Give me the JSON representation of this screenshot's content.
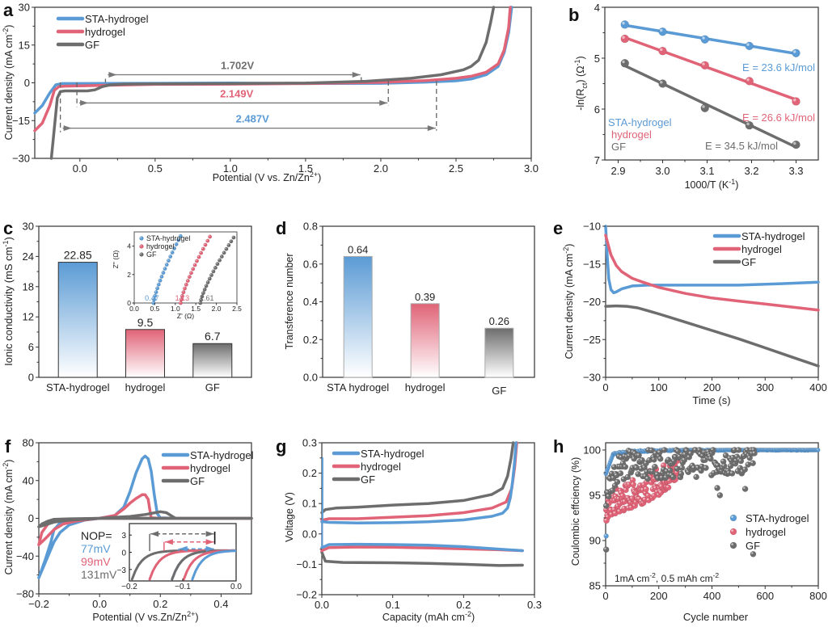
{
  "colors": {
    "sta": "#5b9bd5",
    "hydrogel": "#e06377",
    "gf": "#6d6d6d",
    "axis": "#333333"
  },
  "series_names": [
    "STA-hydrogel",
    "hydrogel",
    "GF"
  ],
  "chart_data": [
    {
      "panel": "a",
      "type": "line",
      "xlabel": "Potential (V vs. Zn/Zn²⁺)",
      "ylabel": "Current density (mA cm⁻²)",
      "xlim": [
        -0.3,
        3.0
      ],
      "ylim": [
        -30,
        30
      ],
      "xticks": [
        0.0,
        0.5,
        1.0,
        1.5,
        2.0,
        2.5,
        3.0
      ],
      "yticks": [
        -30,
        -15,
        0,
        15,
        30
      ],
      "legend": "top-left",
      "series": [
        {
          "name": "STA-hydrogel",
          "x": [
            -0.3,
            -0.25,
            -0.2,
            -0.16,
            -0.12,
            0.0,
            0.5,
            1.0,
            1.5,
            2.0,
            2.3,
            2.5,
            2.6,
            2.7,
            2.78,
            2.82,
            2.85,
            2.87
          ],
          "y": [
            -12,
            -9,
            -4,
            -0.8,
            -0.3,
            -0.3,
            -0.2,
            -0.1,
            -0.3,
            -0.2,
            0.3,
            0.8,
            1.5,
            3.2,
            6.5,
            12,
            20,
            30
          ]
        },
        {
          "name": "hydrogel",
          "x": [
            -0.3,
            -0.25,
            -0.2,
            -0.17,
            -0.14,
            -0.1,
            0.0,
            0.5,
            1.0,
            1.5,
            2.0,
            2.3,
            2.5,
            2.6,
            2.7,
            2.78,
            2.82,
            2.85,
            2.86
          ],
          "y": [
            -19,
            -16,
            -9,
            -3,
            -1.5,
            -1.3,
            -1.2,
            -0.6,
            -0.5,
            -0.3,
            0.2,
            0.9,
            1.8,
            2.6,
            4.2,
            7.5,
            13,
            22,
            30
          ]
        },
        {
          "name": "GF",
          "x": [
            -0.19,
            -0.17,
            -0.15,
            -0.13,
            -0.1,
            -0.05,
            0.05,
            0.1,
            0.15,
            0.2,
            0.3,
            0.5,
            1.0,
            1.5,
            1.9,
            2.2,
            2.4,
            2.55,
            2.6,
            2.65,
            2.7,
            2.73,
            2.75
          ],
          "y": [
            -30,
            -18,
            -6,
            -3.5,
            -3.2,
            -3.2,
            -3.2,
            -2.8,
            -1.5,
            -0.8,
            -0.5,
            -0.4,
            -0.3,
            -0.1,
            0.6,
            1.8,
            3.2,
            5.2,
            6.5,
            9,
            16,
            24,
            30
          ]
        }
      ],
      "annotations": [
        {
          "text": "1.702V",
          "color": "gf",
          "from": 0.17,
          "to": 1.87,
          "y": 3.2
        },
        {
          "text": "2.149V",
          "color": "hydrogel",
          "from": -0.02,
          "to": 2.05,
          "y": -8
        },
        {
          "text": "2.487V",
          "color": "sta",
          "from": -0.13,
          "to": 2.37,
          "y": -18
        }
      ]
    },
    {
      "panel": "b",
      "type": "scatter",
      "xlabel": "1000/T (K⁻¹)",
      "ylabel": "-ln(Rₑₜ) (Ω⁻¹)",
      "ylabel_main": "-ln(R",
      "ylabel_sub": "ct",
      "ylabel_tail": ") (Ω",
      "ylabel_sup": "-1",
      "ylabel_end": ")",
      "xlim": [
        2.87,
        3.35
      ],
      "ylim": [
        7,
        4
      ],
      "y_inverted": true,
      "xticks": [
        2.9,
        3.0,
        3.1,
        3.2,
        3.3
      ],
      "yticks": [
        4,
        5,
        6,
        7
      ],
      "legend": "bottom-left",
      "series": [
        {
          "name": "STA-hydrogel",
          "x": [
            2.915,
            3.0,
            3.095,
            3.195,
            3.3
          ],
          "y": [
            4.34,
            4.48,
            4.63,
            4.76,
            4.9
          ],
          "label": "E = 23.6 kJ/mol"
        },
        {
          "name": "hydrogel",
          "x": [
            2.915,
            3.0,
            3.095,
            3.195,
            3.3
          ],
          "y": [
            4.62,
            4.86,
            5.14,
            5.45,
            5.85
          ],
          "label": "E = 26.6 kJ/mol"
        },
        {
          "name": "GF",
          "x": [
            2.915,
            3.0,
            3.095,
            3.195,
            3.3
          ],
          "y": [
            5.1,
            5.5,
            5.98,
            6.32,
            6.7
          ],
          "label": "E = 34.5 kJ/mol"
        }
      ]
    },
    {
      "panel": "c",
      "type": "bar",
      "ylabel": "Ionic conductivity (mS cm⁻¹)",
      "categories": [
        "STA-hydrogel",
        "hydrogel",
        "GF"
      ],
      "values": [
        22.85,
        9.5,
        6.7
      ],
      "value_labels": [
        "22.85",
        "9.5",
        "6.7"
      ],
      "ylim": [
        0,
        30
      ],
      "yticks": [
        0,
        6,
        12,
        18,
        24,
        30
      ],
      "inset": {
        "type": "scatter",
        "xlabel": "Z' (Ω)",
        "ylabel": "Z'' (Ω)",
        "xlim": [
          0,
          2.5
        ],
        "ylim": [
          0,
          5
        ],
        "xticks": [
          "0.0",
          "0.5",
          "1.0",
          "1.5",
          "2.0",
          "2.5"
        ],
        "yticks": [
          0,
          2,
          4
        ],
        "intercepts": [
          {
            "text": "0.47",
            "x": 0.47
          },
          {
            "text": "1.13",
            "x": 1.13
          },
          {
            "text": "1.61",
            "x": 1.61
          }
        ],
        "series": [
          {
            "name": "STA-hydrogel",
            "x0": 0.47,
            "x1": 1.18,
            "ymax": 5.0
          },
          {
            "name": "hydrogel",
            "x0": 1.13,
            "x1": 1.9,
            "ymax": 4.95
          },
          {
            "name": "GF",
            "x0": 1.61,
            "x1": 2.42,
            "ymax": 4.6
          }
        ]
      }
    },
    {
      "panel": "d",
      "type": "bar",
      "ylabel": "Transference number",
      "categories": [
        "STA hydrogel",
        "hydrogel",
        "GF"
      ],
      "values": [
        0.64,
        0.39,
        0.26
      ],
      "value_labels": [
        "0.64",
        "0.39",
        "0.26"
      ],
      "ylim": [
        0,
        0.8
      ],
      "yticks": [
        "0.0",
        "0.2",
        "0.4",
        "0.6",
        "0.8"
      ]
    },
    {
      "panel": "e",
      "type": "line",
      "xlabel": "Time (s)",
      "ylabel": "Current density (mA cm⁻²)",
      "xlim": [
        0,
        400
      ],
      "ylim": [
        -30,
        -10
      ],
      "xticks": [
        0,
        100,
        200,
        300,
        400
      ],
      "yticks": [
        -30,
        -25,
        -20,
        -15,
        -10
      ],
      "legend": "top-right",
      "series": [
        {
          "name": "STA-hydrogel",
          "x": [
            0,
            3,
            6,
            10,
            15,
            20,
            30,
            50,
            80,
            150,
            250,
            330,
            400
          ],
          "y": [
            -10,
            -14,
            -17,
            -18.4,
            -18.8,
            -18.7,
            -18.3,
            -17.9,
            -17.8,
            -17.8,
            -17.8,
            -17.6,
            -17.4
          ]
        },
        {
          "name": "hydrogel",
          "x": [
            0,
            5,
            10,
            20,
            30,
            50,
            70,
            100,
            150,
            200,
            250,
            300,
            350,
            400
          ],
          "y": [
            -11.2,
            -12.5,
            -13.8,
            -15.2,
            -16,
            -16.9,
            -17.4,
            -18.1,
            -18.9,
            -19.5,
            -19.9,
            -20.3,
            -20.7,
            -21.1
          ]
        },
        {
          "name": "GF",
          "x": [
            0,
            20,
            40,
            60,
            80,
            100,
            150,
            200,
            250,
            300,
            350,
            400
          ],
          "y": [
            -20.6,
            -20.55,
            -20.6,
            -20.8,
            -21.2,
            -21.6,
            -22.7,
            -23.8,
            -24.9,
            -26.1,
            -27.3,
            -28.5
          ]
        }
      ]
    },
    {
      "panel": "f",
      "type": "line",
      "xlabel": "Potential (V vs.Zn/Zn²⁺)",
      "ylabel": "Current density (mA cm⁻²)",
      "xlim": [
        -0.2,
        0.5
      ],
      "ylim": [
        -80,
        80
      ],
      "xticks": [
        "-0.2",
        "0.0",
        "0.2",
        "0.4"
      ],
      "yticks": [
        -80,
        -40,
        0,
        40,
        80
      ],
      "legend": "top-right",
      "nop_label": "NOP=",
      "nop_values": [
        {
          "text": "77mV",
          "color": "sta"
        },
        {
          "text": "99mV",
          "color": "hydrogel"
        },
        {
          "text": "131mV",
          "color": "gf"
        }
      ],
      "series": [
        {
          "name": "STA-hydrogel",
          "x": [
            -0.2,
            -0.17,
            -0.15,
            -0.13,
            -0.1,
            -0.05,
            0.0,
            0.05,
            0.08,
            0.1,
            0.12,
            0.14,
            0.15,
            0.16,
            0.17,
            0.18,
            0.19,
            0.2,
            0.25,
            0.5,
            0.5,
            0.2,
            0.1,
            0.0,
            -0.05,
            -0.1,
            -0.13,
            -0.15,
            -0.16,
            -0.18,
            -0.2
          ],
          "y": [
            -63,
            -40,
            -25,
            -15,
            -7,
            -2,
            0,
            3,
            12,
            28,
            48,
            63,
            66,
            63,
            50,
            25,
            5,
            0.5,
            0,
            0,
            0,
            0,
            0,
            0,
            -0.5,
            -2,
            -5,
            -12,
            -25,
            -45,
            -63
          ]
        },
        {
          "name": "hydrogel",
          "x": [
            -0.2,
            -0.18,
            -0.15,
            -0.12,
            -0.08,
            -0.03,
            0.0,
            0.05,
            0.08,
            0.1,
            0.12,
            0.14,
            0.15,
            0.16,
            0.165,
            0.17,
            0.2,
            0.5,
            0.5,
            0.2,
            0.1,
            0.0,
            -0.1,
            -0.15,
            -0.17,
            -0.19,
            -0.2
          ],
          "y": [
            -28,
            -22,
            -12,
            -6,
            -3,
            -1,
            0,
            3,
            10,
            16,
            21,
            25,
            25,
            20,
            10,
            0.5,
            0,
            0,
            0,
            0,
            0,
            0,
            -1,
            -3,
            -6,
            -15,
            -28
          ]
        },
        {
          "name": "GF",
          "x": [
            -0.2,
            -0.18,
            -0.15,
            -0.1,
            -0.05,
            0.0,
            0.05,
            0.1,
            0.15,
            0.2,
            0.22,
            0.24,
            0.25,
            0.5,
            0.5,
            0.2,
            0.0,
            -0.1,
            -0.15,
            -0.17,
            -0.19,
            -0.2
          ],
          "y": [
            -9,
            -7,
            -4,
            -2,
            -1,
            0,
            1,
            2,
            4,
            7,
            6,
            2,
            0,
            0,
            0,
            0,
            0,
            -0.5,
            -1,
            -3,
            -6,
            -9
          ]
        }
      ],
      "inset": {
        "xlim": [
          -0.2,
          0.0
        ],
        "ylim": [
          -5,
          5
        ],
        "xticks": [
          "-0.2",
          "-0.1",
          "0.0"
        ],
        "yticks": [
          -3,
          0,
          3
        ]
      }
    },
    {
      "panel": "g",
      "type": "line",
      "xlabel": "Capacity (mAh cm⁻²)",
      "ylabel": "Voltage (V)",
      "xlim": [
        0,
        0.3
      ],
      "ylim": [
        -0.2,
        0.3
      ],
      "xticks": [
        "0.0",
        "0.1",
        "0.2",
        "0.3"
      ],
      "yticks": [
        "-0.2",
        "-0.1",
        "0.0",
        "0.1",
        "0.2",
        "0.3"
      ],
      "legend": "top-left",
      "series": [
        {
          "name": "STA-hydrogel",
          "charge": {
            "x": [
              0,
              0.002,
              0.01,
              0.05,
              0.1,
              0.15,
              0.2,
              0.24,
              0.255,
              0.262,
              0.266,
              0.269,
              0.272,
              0.274
            ],
            "y": [
              0.04,
              0.04,
              0.038,
              0.036,
              0.037,
              0.04,
              0.046,
              0.058,
              0.068,
              0.085,
              0.12,
              0.17,
              0.24,
              0.3
            ]
          },
          "discharge": {
            "x": [
              0,
              0.01,
              0.05,
              0.1,
              0.15,
              0.2,
              0.25,
              0.283
            ],
            "y": [
              -0.045,
              -0.035,
              -0.034,
              -0.035,
              -0.037,
              -0.042,
              -0.05,
              -0.055
            ]
          },
          "spike": {
            "x": [
              0.001,
              0.001
            ],
            "y": [
              0.04,
              0.25
            ]
          }
        },
        {
          "name": "hydrogel",
          "charge": {
            "x": [
              0,
              0.01,
              0.05,
              0.1,
              0.15,
              0.2,
              0.24,
              0.26,
              0.268,
              0.272,
              0.275
            ],
            "y": [
              0.045,
              0.05,
              0.05,
              0.055,
              0.06,
              0.07,
              0.085,
              0.105,
              0.15,
              0.22,
              0.3
            ]
          },
          "discharge": {
            "x": [
              0,
              0.01,
              0.05,
              0.1,
              0.15,
              0.2,
              0.25,
              0.283
            ],
            "y": [
              -0.055,
              -0.045,
              -0.043,
              -0.044,
              -0.046,
              -0.049,
              -0.052,
              -0.055
            ]
          }
        },
        {
          "name": "GF",
          "charge": {
            "x": [
              0,
              0.005,
              0.02,
              0.05,
              0.1,
              0.15,
              0.2,
              0.24,
              0.255,
              0.262,
              0.267,
              0.27
            ],
            "y": [
              0.07,
              0.08,
              0.085,
              0.088,
              0.095,
              0.1,
              0.11,
              0.13,
              0.15,
              0.19,
              0.25,
              0.3
            ]
          },
          "discharge": {
            "x": [
              0,
              0.005,
              0.03,
              0.1,
              0.15,
              0.2,
              0.25,
              0.283
            ],
            "y": [
              -0.06,
              -0.09,
              -0.094,
              -0.095,
              -0.097,
              -0.1,
              -0.104,
              -0.103
            ]
          }
        }
      ]
    },
    {
      "panel": "h",
      "type": "scatter",
      "xlabel": "Cycle number",
      "ylabel": "Coulombic effciency (%)",
      "xlim": [
        0,
        800
      ],
      "ylim": [
        85,
        100.8
      ],
      "xticks": [
        0,
        200,
        400,
        600,
        800
      ],
      "yticks": [
        85,
        90,
        95,
        100
      ],
      "legend": "right",
      "annotation": "1mA cm⁻², 0.5 mAh cm⁻²",
      "series": [
        {
          "name": "STA-hydrogel",
          "first_cycle": 90.5,
          "plateau": 99.8,
          "cycles": 800
        },
        {
          "name": "hydrogel",
          "first_cycle": 92.2,
          "cycles": 270,
          "range": [
            92.4,
            99.0
          ]
        },
        {
          "name": "GF",
          "first_cycle": 89.0,
          "cycles": 560,
          "range": [
            95.0,
            100.0
          ],
          "outliers": [
            [
              420,
              95.8
            ],
            [
              430,
              95.0
            ],
            [
              525,
              95.7
            ],
            [
              555,
              88.5
            ]
          ]
        }
      ]
    }
  ]
}
